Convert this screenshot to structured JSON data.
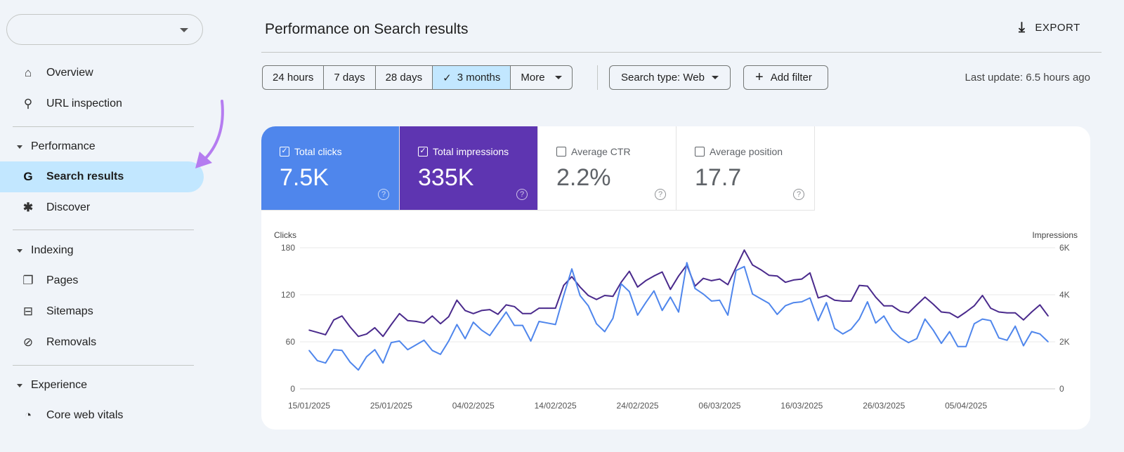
{
  "sidebar": {
    "property_selector": "",
    "items": [
      {
        "label": "Overview",
        "icon": "home-icon"
      },
      {
        "label": "URL inspection",
        "icon": "search-icon"
      }
    ],
    "sections": [
      {
        "label": "Performance",
        "items": [
          {
            "label": "Search results",
            "icon": "google-g-icon",
            "active": true
          },
          {
            "label": "Discover",
            "icon": "asterisk-icon"
          }
        ]
      },
      {
        "label": "Indexing",
        "items": [
          {
            "label": "Pages",
            "icon": "pages-icon"
          },
          {
            "label": "Sitemaps",
            "icon": "sitemap-icon"
          },
          {
            "label": "Removals",
            "icon": "eye-off-icon"
          }
        ]
      },
      {
        "label": "Experience",
        "items": [
          {
            "label": "Core web vitals",
            "icon": "gauge-icon"
          }
        ]
      }
    ],
    "annotation_arrow_color": "#b57cf0"
  },
  "header": {
    "title": "Performance on Search results",
    "export_label": "EXPORT"
  },
  "filters": {
    "ranges": [
      "24 hours",
      "7 days",
      "28 days",
      "3 months",
      "More"
    ],
    "selected_range": "3 months",
    "search_type": "Search type: Web",
    "add_filter": "Add filter",
    "last_update": "Last update: 6.5 hours ago"
  },
  "metrics": [
    {
      "label": "Total clicks",
      "value": "7.5K",
      "checked": true,
      "color": "#4f86ec"
    },
    {
      "label": "Total impressions",
      "value": "335K",
      "checked": true,
      "color": "#5e35b1"
    },
    {
      "label": "Average CTR",
      "value": "2.2%",
      "checked": false
    },
    {
      "label": "Average position",
      "value": "17.7",
      "checked": false
    }
  ],
  "chart_data": {
    "type": "line",
    "ylabel_left": "Clicks",
    "ylabel_right": "Impressions",
    "ylim_left": [
      0,
      180
    ],
    "ylim_right": [
      0,
      6000
    ],
    "yticks_left": [
      "0",
      "60",
      "120",
      "180"
    ],
    "yticks_right": [
      "0",
      "2K",
      "4K",
      "6K"
    ],
    "grid": true,
    "x_start": "15/01/2025",
    "xtick_labels": [
      "15/01/2025",
      "25/01/2025",
      "04/02/2025",
      "14/02/2025",
      "24/02/2025",
      "06/03/2025",
      "16/03/2025",
      "26/03/2025",
      "05/04/2025"
    ],
    "series": [
      {
        "name": "Total clicks",
        "axis": "left",
        "color": "#4f86ec",
        "values": [
          49,
          36,
          33,
          50,
          49,
          34,
          24,
          41,
          50,
          33,
          59,
          61,
          50,
          56,
          62,
          49,
          44,
          61,
          82,
          64,
          85,
          75,
          68,
          83,
          98,
          81,
          81,
          61,
          86,
          84,
          82,
          119,
          153,
          119,
          106,
          83,
          73,
          90,
          134,
          124,
          94,
          110,
          125,
          100,
          117,
          98,
          161,
          128,
          121,
          112,
          113,
          94,
          151,
          156,
          121,
          115,
          109,
          95,
          106,
          110,
          111,
          116,
          87,
          110,
          77,
          70,
          76,
          89,
          111,
          84,
          93,
          75,
          65,
          59,
          64,
          89,
          75,
          58,
          73,
          54,
          54,
          83,
          89,
          87,
          65,
          62,
          80,
          55,
          73,
          70,
          60
        ]
      },
      {
        "name": "Total impressions",
        "axis": "right",
        "color": "#4a2a8c",
        "values": [
          2500,
          2400,
          2300,
          2930,
          3100,
          2630,
          2230,
          2330,
          2600,
          2230,
          2730,
          3200,
          2900,
          2870,
          2800,
          3100,
          2770,
          3070,
          3770,
          3330,
          3200,
          3330,
          3370,
          3170,
          3570,
          3500,
          3200,
          3200,
          3430,
          3430,
          3430,
          4400,
          4770,
          4330,
          3970,
          3800,
          3970,
          3930,
          4530,
          5000,
          4330,
          4600,
          4800,
          4970,
          4230,
          4800,
          5270,
          4370,
          4700,
          4600,
          4670,
          4430,
          5170,
          5900,
          5270,
          5070,
          4830,
          4800,
          4530,
          4630,
          4670,
          4930,
          3870,
          3970,
          3770,
          3730,
          3730,
          4400,
          4370,
          3900,
          3530,
          3530,
          3300,
          3230,
          3570,
          3900,
          3600,
          3270,
          3230,
          3030,
          3270,
          3530,
          3970,
          3430,
          3270,
          3230,
          3230,
          2930,
          3270,
          3570,
          3100
        ]
      }
    ]
  }
}
